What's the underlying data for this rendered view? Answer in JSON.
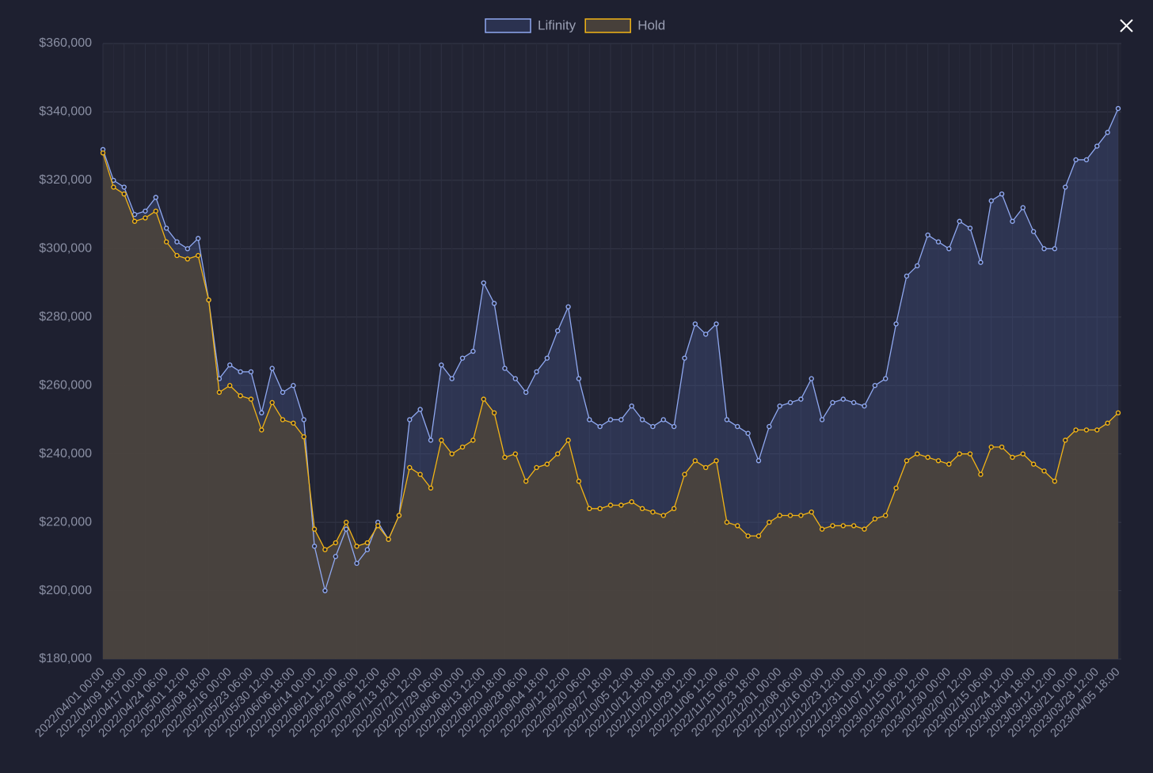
{
  "chart_data": {
    "type": "line",
    "legend_position": "top",
    "grid": true,
    "categories": [
      "2022/04/01 00:00",
      null,
      "2022/04/09 18:00",
      null,
      "2022/04/17 00:00",
      null,
      "2022/04/24 06:00",
      null,
      "2022/05/01 12:00",
      null,
      "2022/05/08 18:00",
      null,
      "2022/05/16 00:00",
      null,
      "2022/05/23 06:00",
      null,
      "2022/05/30 12:00",
      null,
      "2022/06/06 18:00",
      null,
      "2022/06/14 00:00",
      null,
      "2022/06/21 12:00",
      null,
      "2022/06/29 06:00",
      null,
      "2022/07/06 12:00",
      null,
      "2022/07/13 18:00",
      null,
      "2022/07/21 12:00",
      null,
      "2022/07/29 06:00",
      null,
      "2022/08/06 00:00",
      null,
      "2022/08/13 12:00",
      null,
      "2022/08/20 18:00",
      null,
      "2022/08/28 06:00",
      null,
      "2022/09/04 18:00",
      null,
      "2022/09/12 12:00",
      null,
      "2022/09/20 06:00",
      null,
      "2022/09/27 18:00",
      null,
      "2022/10/05 12:00",
      null,
      "2022/10/12 18:00",
      null,
      "2022/10/20 18:00",
      null,
      "2022/10/29 12:00",
      null,
      "2022/11/06 12:00",
      null,
      "2022/11/15 06:00",
      null,
      "2022/11/23 18:00",
      null,
      "2022/12/01 00:00",
      null,
      "2022/12/08 06:00",
      null,
      "2022/12/16 00:00",
      null,
      "2022/12/23 12:00",
      null,
      "2022/12/31 00:00",
      null,
      "2023/01/07 12:00",
      null,
      "2023/01/15 06:00",
      null,
      "2023/01/22 12:00",
      null,
      "2023/01/30 00:00",
      null,
      "2023/02/07 12:00",
      null,
      "2023/02/15 06:00",
      null,
      "2023/02/24 12:00",
      null,
      "2023/03/04 18:00",
      null,
      "2023/03/12 12:00",
      null,
      "2023/03/21 00:00",
      null,
      "2023/03/28 12:00",
      null,
      "2023/04/05 18:00"
    ],
    "series": [
      {
        "name": "Lifinity",
        "color": "#8fa8f0",
        "values": [
          329000,
          320000,
          318000,
          310000,
          311000,
          315000,
          306000,
          302000,
          300000,
          303000,
          285000,
          262000,
          266000,
          264000,
          264000,
          252000,
          265000,
          258000,
          260000,
          250000,
          213000,
          200000,
          210000,
          218000,
          208000,
          212000,
          220000,
          215000,
          222000,
          250000,
          253000,
          244000,
          266000,
          262000,
          268000,
          270000,
          290000,
          284000,
          265000,
          262000,
          258000,
          264000,
          268000,
          276000,
          283000,
          262000,
          250000,
          248000,
          250000,
          250000,
          254000,
          250000,
          248000,
          250000,
          248000,
          268000,
          278000,
          275000,
          278000,
          250000,
          248000,
          246000,
          238000,
          248000,
          254000,
          255000,
          256000,
          262000,
          250000,
          255000,
          256000,
          255000,
          254000,
          260000,
          262000,
          278000,
          292000,
          295000,
          304000,
          302000,
          300000,
          308000,
          306000,
          296000,
          314000,
          316000,
          308000,
          312000,
          305000,
          300000,
          300000,
          318000,
          326000,
          326000,
          330000,
          334000,
          341000
        ]
      },
      {
        "name": "Hold",
        "color": "#f2b416",
        "values": [
          328000,
          318000,
          316000,
          308000,
          309000,
          311000,
          302000,
          298000,
          297000,
          298000,
          285000,
          258000,
          260000,
          257000,
          256000,
          247000,
          255000,
          250000,
          249000,
          245000,
          218000,
          212000,
          214000,
          220000,
          213000,
          214000,
          219000,
          215000,
          222000,
          236000,
          234000,
          230000,
          244000,
          240000,
          242000,
          244000,
          256000,
          252000,
          239000,
          240000,
          232000,
          236000,
          237000,
          240000,
          244000,
          232000,
          224000,
          224000,
          225000,
          225000,
          226000,
          224000,
          223000,
          222000,
          224000,
          234000,
          238000,
          236000,
          238000,
          220000,
          219000,
          216000,
          216000,
          220000,
          222000,
          222000,
          222000,
          223000,
          218000,
          219000,
          219000,
          219000,
          218000,
          221000,
          222000,
          230000,
          238000,
          240000,
          239000,
          238000,
          237000,
          240000,
          240000,
          234000,
          242000,
          242000,
          239000,
          240000,
          237000,
          235000,
          232000,
          244000,
          247000,
          247000,
          247000,
          249000,
          252000
        ]
      }
    ],
    "ylim": [
      180000,
      360000
    ],
    "yticks": [
      {
        "value": 180000,
        "label": "$180,000"
      },
      {
        "value": 200000,
        "label": "$200,000"
      },
      {
        "value": 220000,
        "label": "$220,000"
      },
      {
        "value": 240000,
        "label": "$240,000"
      },
      {
        "value": 260000,
        "label": "$260,000"
      },
      {
        "value": 280000,
        "label": "$280,000"
      },
      {
        "value": 300000,
        "label": "$300,000"
      },
      {
        "value": 320000,
        "label": "$320,000"
      },
      {
        "value": 340000,
        "label": "$340,000"
      },
      {
        "value": 360000,
        "label": "$360,000"
      }
    ]
  }
}
